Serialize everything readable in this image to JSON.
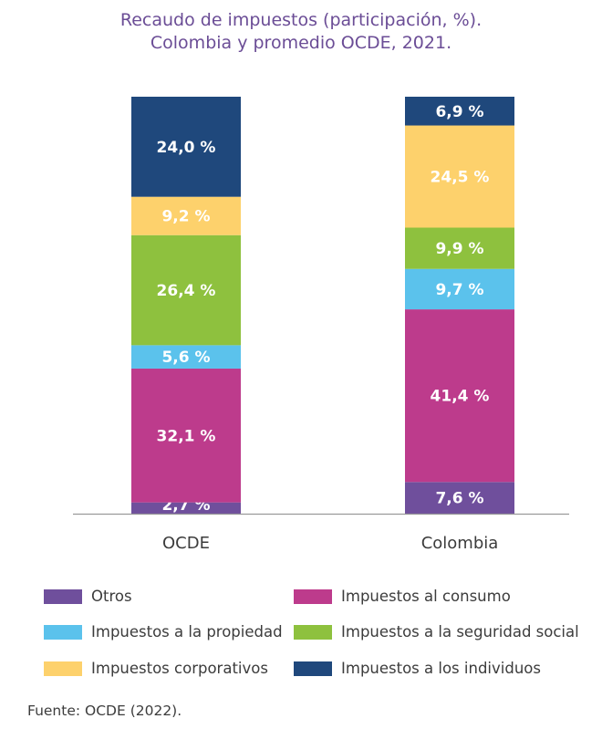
{
  "chart_data": {
    "type": "bar",
    "stacked": true,
    "title_line1": "Recaudo de impuestos (participación, %).",
    "title_line2": "Colombia y promedio OCDE, 2021.",
    "categories": [
      "OCDE",
      "Colombia"
    ],
    "ylim": [
      0,
      100
    ],
    "series": [
      {
        "name": "Otros",
        "color": "#6f4f9c",
        "values": [
          2.7,
          7.6
        ],
        "labels": [
          "2,7 %",
          "7,6 %"
        ]
      },
      {
        "name": "Impuestos al consumo",
        "color": "#bd3b8c",
        "values": [
          32.1,
          41.4
        ],
        "labels": [
          "32,1 %",
          "41,4 %"
        ]
      },
      {
        "name": "Impuestos a la propiedad",
        "color": "#5bc2ec",
        "values": [
          5.6,
          9.7
        ],
        "labels": [
          "5,6 %",
          "9,7 %"
        ]
      },
      {
        "name": "Impuestos a la seguridad social",
        "color": "#8ec13e",
        "values": [
          26.4,
          9.9
        ],
        "labels": [
          "26,4 %",
          "9,9 %"
        ]
      },
      {
        "name": "Impuestos corporativos",
        "color": "#fdd16c",
        "values": [
          9.2,
          24.5
        ],
        "labels": [
          "9,2 %",
          "24,5 %"
        ]
      },
      {
        "name": "Impuestos a los individuos",
        "color": "#1f487c",
        "values": [
          24.0,
          6.9
        ],
        "labels": [
          "24,0 %",
          "6,9 %"
        ]
      }
    ],
    "source": "Fuente: OCDE  (2022)."
  }
}
